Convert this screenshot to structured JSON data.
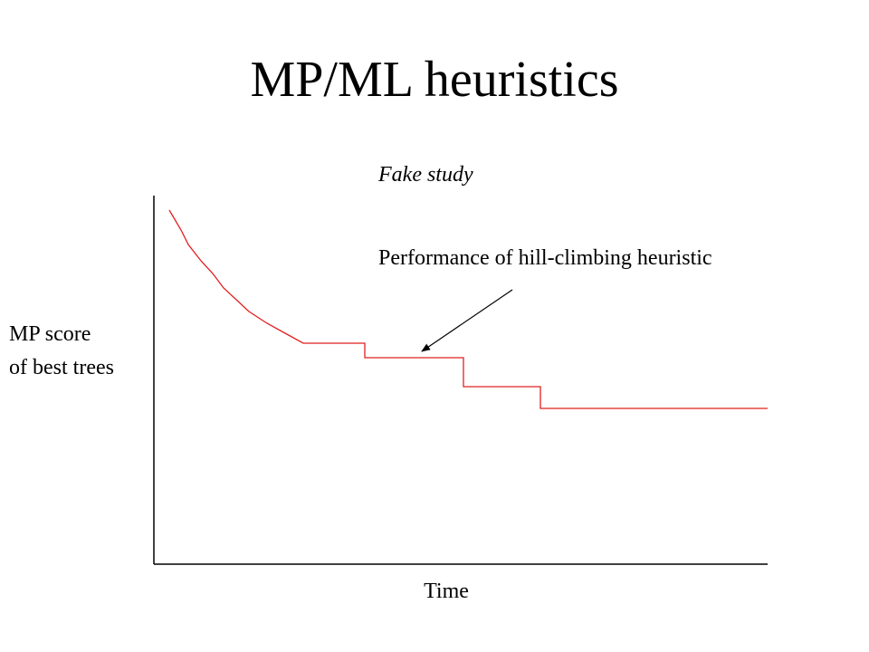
{
  "title": "MP/ML heuristics",
  "figure": {
    "subtitle": "Fake study",
    "annotation": "Performance of hill-climbing heuristic",
    "y_label": [
      "MP score",
      "of best trees"
    ],
    "x_label": "Time"
  }
}
